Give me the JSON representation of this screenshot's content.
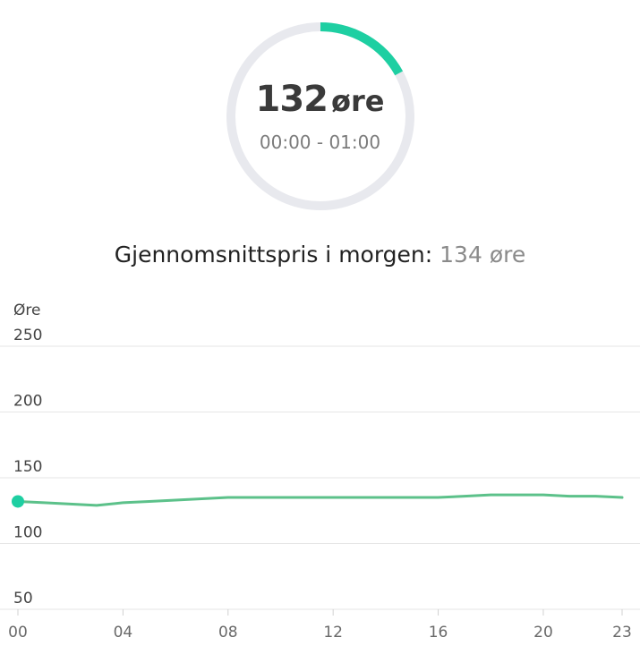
{
  "gauge": {
    "value": "132",
    "unit": "øre",
    "time_range": "00:00 - 01:00",
    "progress_fraction": 0.17,
    "accent_color": "#1ecfa2",
    "track_color": "#e8e9ee"
  },
  "summary": {
    "label": "Gjennomsnittspris i morgen:",
    "value": "134 øre"
  },
  "chart_data": {
    "type": "line",
    "ylabel": "Øre",
    "ylim": [
      50,
      250
    ],
    "y_ticks": [
      "250",
      "200",
      "150",
      "100",
      "50"
    ],
    "x_ticks": [
      "00",
      "04",
      "08",
      "12",
      "16",
      "20",
      "23"
    ],
    "x": [
      0,
      1,
      2,
      3,
      4,
      5,
      6,
      7,
      8,
      9,
      10,
      11,
      12,
      13,
      14,
      15,
      16,
      17,
      18,
      19,
      20,
      21,
      22,
      23
    ],
    "series": [
      {
        "values": [
          132,
          131,
          130,
          129,
          131,
          132,
          133,
          134,
          135,
          135,
          135,
          135,
          135,
          135,
          135,
          135,
          135,
          136,
          137,
          137,
          137,
          136,
          136,
          135
        ]
      }
    ],
    "highlight_index": 0,
    "line_color": "#5cc18a",
    "grid": true
  }
}
